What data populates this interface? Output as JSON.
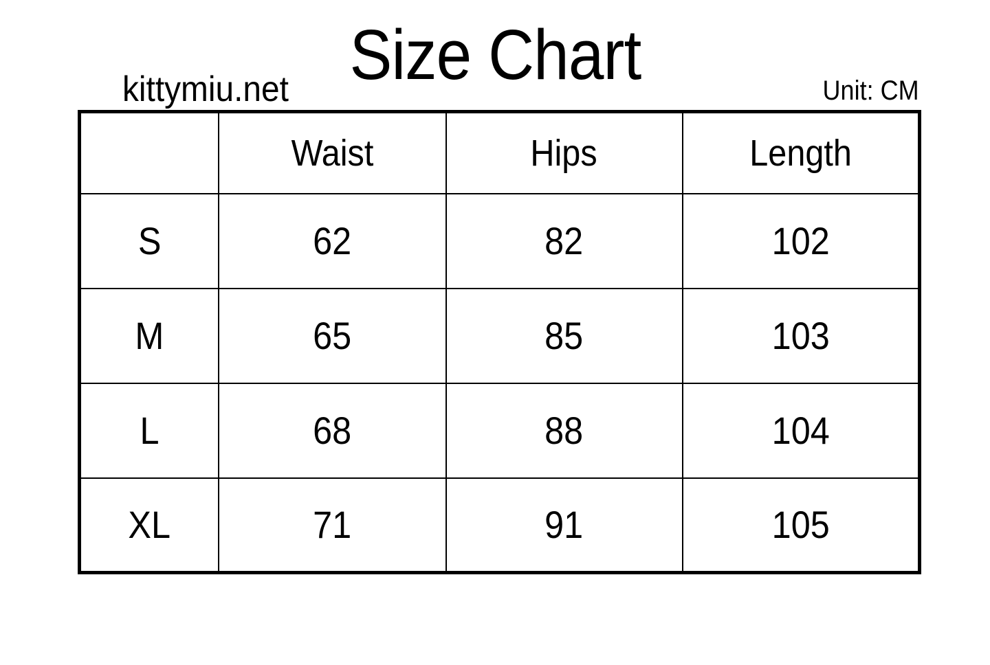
{
  "header": {
    "title": "Size Chart",
    "site": "kittymiu.net",
    "unit_label": "Unit: CM"
  },
  "chart_data": {
    "type": "table",
    "title": "Size Chart",
    "unit": "CM",
    "source": "kittymiu.net",
    "columns": [
      "",
      "Waist",
      "Hips",
      "Length"
    ],
    "rows": [
      {
        "size": "S",
        "waist": "62",
        "hips": "82",
        "length": "102"
      },
      {
        "size": "M",
        "waist": "65",
        "hips": "85",
        "length": "103"
      },
      {
        "size": "L",
        "waist": "68",
        "hips": "88",
        "length": "104"
      },
      {
        "size": "XL",
        "waist": "71",
        "hips": "91",
        "length": "105"
      }
    ]
  },
  "colors": {
    "background": "#ffffff",
    "text": "#000000",
    "grid": "#000000"
  }
}
